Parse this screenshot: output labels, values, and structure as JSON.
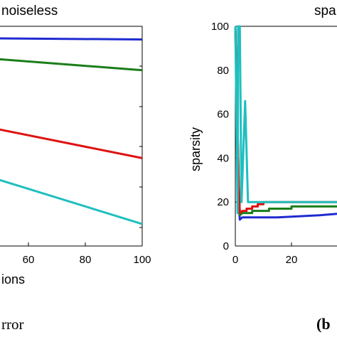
{
  "chart_data": [
    {
      "type": "line",
      "title": "noiseless",
      "xlabel": "ions",
      "ylabel": "",
      "xlim": [
        0,
        100
      ],
      "x_ticks": [
        "60",
        "80",
        "100"
      ],
      "grid": false,
      "series": [
        {
          "color": "#1f2bd0",
          "x": [
            0,
            100
          ],
          "y": [
            0.95,
            0.94
          ]
        },
        {
          "color": "#1a7d1a",
          "x": [
            0,
            100
          ],
          "y": [
            0.9,
            0.8
          ]
        },
        {
          "color": "#e01010",
          "x": [
            0,
            100
          ],
          "y": [
            0.66,
            0.4
          ]
        },
        {
          "color": "#1fbfbf",
          "x": [
            0,
            100
          ],
          "y": [
            0.5,
            0.1
          ]
        }
      ]
    },
    {
      "type": "line",
      "title": "spa",
      "xlabel": "",
      "ylabel": "sparsity",
      "xlim": [
        0,
        40
      ],
      "ylim": [
        0,
        100
      ],
      "x_ticks": [
        "0",
        "20"
      ],
      "y_ticks": [
        "0",
        "20",
        "40",
        "60",
        "80",
        "100"
      ],
      "grid": false,
      "series": [
        {
          "color": "#1f2bd0",
          "x": [
            0,
            0.8,
            1.2,
            1.6,
            2.5,
            15,
            15,
            30,
            30,
            40
          ],
          "y": [
            100,
            45,
            20,
            12,
            13,
            13,
            13,
            14,
            14,
            15
          ]
        },
        {
          "color": "#1a7d1a",
          "x": [
            0,
            0.7,
            1.2,
            1.6,
            2.5,
            6,
            6,
            12,
            12,
            20,
            20,
            40
          ],
          "y": [
            100,
            61,
            30,
            14,
            15,
            15,
            16,
            16,
            17,
            17,
            18,
            18
          ]
        },
        {
          "color": "#e01010",
          "x": [
            0,
            1.2,
            1.6,
            2.5,
            4,
            4,
            6,
            6,
            8,
            8,
            10,
            10,
            40
          ],
          "y": [
            100,
            30,
            15,
            16,
            16,
            17,
            17,
            18,
            18,
            19,
            19,
            20,
            20
          ]
        },
        {
          "color": "#1fbfbf",
          "x": [
            0,
            0.8,
            1,
            1.6,
            2.2,
            3.5,
            4.5,
            40
          ],
          "y": [
            100,
            15,
            100,
            100,
            20,
            66,
            20,
            20
          ]
        }
      ]
    }
  ],
  "captions": {
    "left": "rror",
    "right": "(b"
  }
}
